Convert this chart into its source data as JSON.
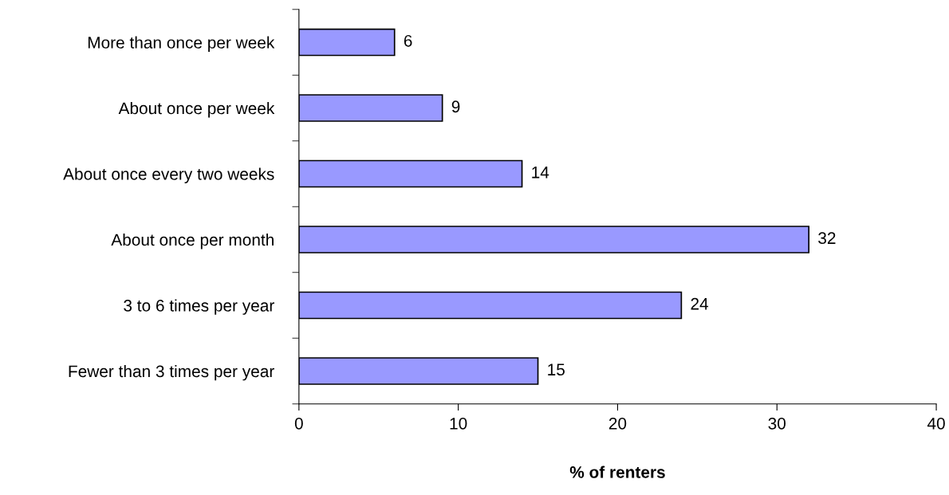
{
  "chart_data": {
    "type": "bar",
    "orientation": "horizontal",
    "xlabel": "% of renters",
    "categories": [
      "More than once per week",
      "About once per week",
      "About once every two weeks",
      "About once per month",
      "3 to 6 times per year",
      "Fewer than 3 times per year"
    ],
    "values": [
      6,
      9,
      14,
      32,
      24,
      15
    ],
    "color": "#9999ff",
    "xlim": [
      0,
      40
    ],
    "xticks": [
      0,
      10,
      20,
      30,
      40
    ],
    "data_labels": true,
    "grid": false,
    "legend": false
  }
}
